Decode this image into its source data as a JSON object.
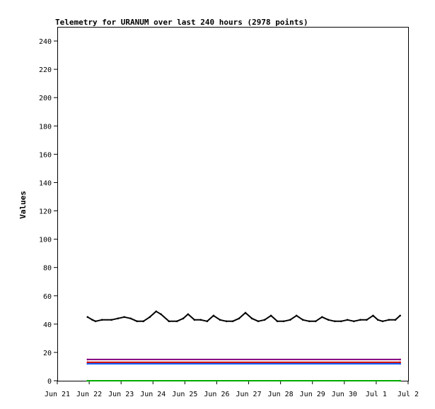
{
  "chart_data": {
    "type": "line",
    "title": "Telemetry for URANUM over last 240 hours (2978 points)",
    "ylabel": "Values",
    "xlabel": "",
    "ylim": [
      0,
      250
    ],
    "yticks": [
      0,
      20,
      40,
      60,
      80,
      100,
      120,
      140,
      160,
      180,
      200,
      220,
      240
    ],
    "xticks": [
      "Jun 21",
      "Jun 22",
      "Jun 23",
      "Jun 24",
      "Jun 25",
      "Jun 26",
      "Jun 27",
      "Jun 28",
      "Jun 29",
      "Jun 30",
      "Jul 1",
      "Jul 2"
    ],
    "xrange_days": [
      0,
      11
    ],
    "grid": false,
    "legend": "none",
    "series": [
      {
        "color": "#000000",
        "x": [
          0.95,
          1.1,
          1.2,
          1.4,
          1.7,
          1.9,
          2.1,
          2.3,
          2.5,
          2.7,
          2.9,
          3.1,
          3.25,
          3.5,
          3.75,
          3.95,
          4.1,
          4.3,
          4.5,
          4.7,
          4.9,
          5.1,
          5.3,
          5.5,
          5.7,
          5.9,
          6.1,
          6.3,
          6.5,
          6.7,
          6.9,
          7.1,
          7.3,
          7.5,
          7.7,
          7.9,
          8.1,
          8.3,
          8.5,
          8.7,
          8.9,
          9.1,
          9.3,
          9.5,
          9.7,
          9.9,
          10.05,
          10.2,
          10.4,
          10.6,
          10.75
        ],
        "y": [
          45,
          43,
          42,
          43,
          43,
          44,
          45,
          44,
          42,
          42,
          45,
          49,
          47,
          42,
          42,
          44,
          47,
          43,
          43,
          42,
          46,
          43,
          42,
          42,
          44,
          48,
          44,
          42,
          43,
          46,
          42,
          42,
          43,
          46,
          43,
          42,
          42,
          45,
          43,
          42,
          42,
          43,
          42,
          43,
          43,
          46,
          43,
          42,
          43,
          43,
          46
        ]
      },
      {
        "color": "#1060ff",
        "x": [
          0.95,
          10.75
        ],
        "y": [
          12,
          12
        ]
      },
      {
        "color": "#cc0000",
        "x": [
          0.95,
          10.75
        ],
        "y": [
          13,
          13
        ]
      },
      {
        "color": "#800080",
        "x": [
          0.95,
          10.75
        ],
        "y": [
          15,
          15
        ]
      },
      {
        "color": "#00aa00",
        "x": [
          0.95,
          10.75
        ],
        "y": [
          0,
          0
        ]
      }
    ],
    "annotations": []
  }
}
